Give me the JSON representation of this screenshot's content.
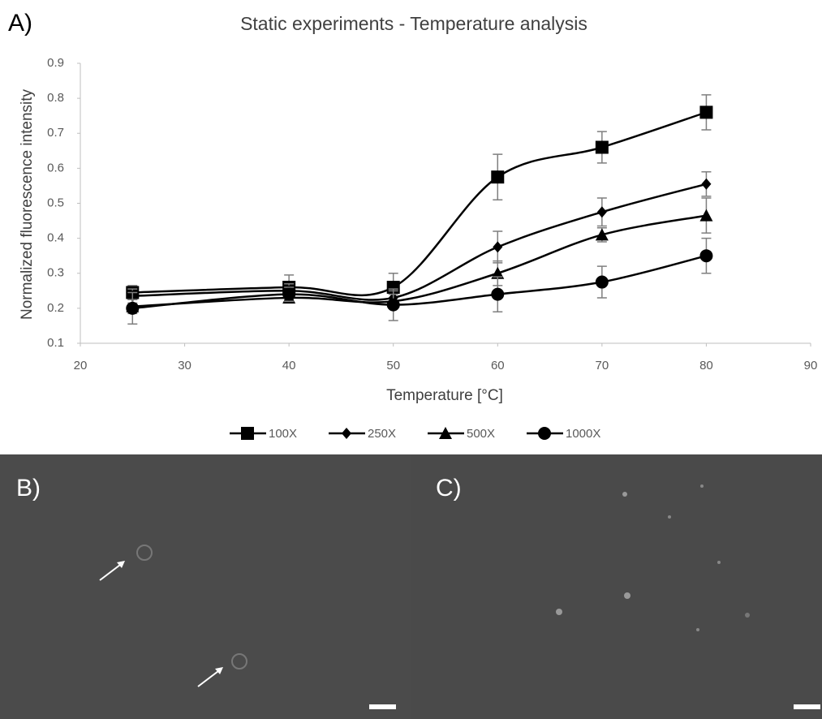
{
  "panel_labels": [
    "A)",
    "B)",
    "C)"
  ],
  "chart_data": {
    "type": "line",
    "title": "Static experiments - Temperature  analysis",
    "x_label": "Temperature [°C]",
    "y_label": "Normalized fluorescence intensity",
    "x": [
      25,
      40,
      50,
      60,
      70,
      80
    ],
    "xlim": [
      20,
      90
    ],
    "xticks": [
      20,
      30,
      40,
      50,
      60,
      70,
      80,
      90
    ],
    "ylim": [
      0.1,
      0.9
    ],
    "yticks": [
      0.1,
      0.2,
      0.3,
      0.4,
      0.5,
      0.6,
      0.7,
      0.8,
      0.9
    ],
    "smooth": true,
    "grid": false,
    "legend": "bottom",
    "series": [
      {
        "name": "100X",
        "color": "#000000",
        "marker": "square",
        "values": [
          0.245,
          0.26,
          0.26,
          0.575,
          0.66,
          0.76
        ],
        "errors": [
          0.02,
          0.035,
          0.04,
          0.065,
          0.045,
          0.05
        ]
      },
      {
        "name": "250X",
        "color": "#000000",
        "marker": "diamond",
        "values": [
          0.235,
          0.25,
          0.23,
          0.375,
          0.475,
          0.555
        ],
        "errors": [
          0.02,
          0.02,
          0.02,
          0.045,
          0.04,
          0.035
        ]
      },
      {
        "name": "500X",
        "color": "#000000",
        "marker": "triangle",
        "values": [
          0.205,
          0.23,
          0.22,
          0.3,
          0.41,
          0.465
        ],
        "errors": [
          0.02,
          0.015,
          0.02,
          0.035,
          0.02,
          0.05
        ]
      },
      {
        "name": "1000X",
        "color": "#000000",
        "marker": "circle",
        "values": [
          0.2,
          0.24,
          0.21,
          0.24,
          0.275,
          0.35
        ],
        "errors": [
          0.045,
          0.02,
          0.045,
          0.05,
          0.045,
          0.05
        ]
      }
    ]
  }
}
